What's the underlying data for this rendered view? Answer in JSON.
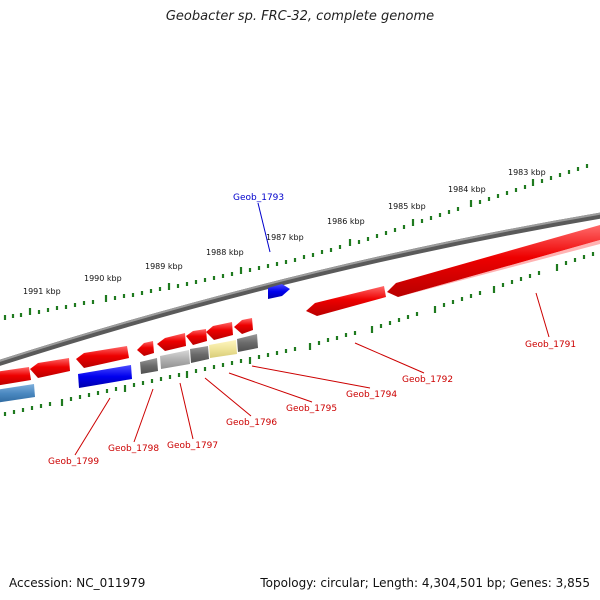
{
  "title": "Geobacter sp. FRC-32, complete genome",
  "footer": {
    "accession": "Accession: NC_011979",
    "summary": "Topology: circular; Length: 4,304,501 bp; Genes: 3,855"
  },
  "scale_labels": [
    "1983 kbp",
    "1984 kbp",
    "1985 kbp",
    "1986 kbp",
    "1987 kbp",
    "1988 kbp",
    "1989 kbp",
    "1990 kbp",
    "1991 kbp"
  ],
  "genes": [
    {
      "id": "Geob_1791",
      "color": "#cc0000"
    },
    {
      "id": "Geob_1792",
      "color": "#cc0000"
    },
    {
      "id": "Geob_1793",
      "color": "#0000cc"
    },
    {
      "id": "Geob_1794",
      "color": "#cc0000"
    },
    {
      "id": "Geob_1795",
      "color": "#cc0000"
    },
    {
      "id": "Geob_1796",
      "color": "#cc0000"
    },
    {
      "id": "Geob_1797",
      "color": "#cc0000"
    },
    {
      "id": "Geob_1798",
      "color": "#cc0000"
    },
    {
      "id": "Geob_1799",
      "color": "#cc0000"
    }
  ],
  "colors": {
    "backbone": "#808080",
    "tick": "#1f7a1f",
    "gene_red": "#ee0000",
    "gene_blue": "#0000ee",
    "gene_gray": "#6e6e6e",
    "gene_light": "#b0b0b0",
    "gene_yellow": "#efe49a",
    "gene_steel": "#4a88c0"
  }
}
